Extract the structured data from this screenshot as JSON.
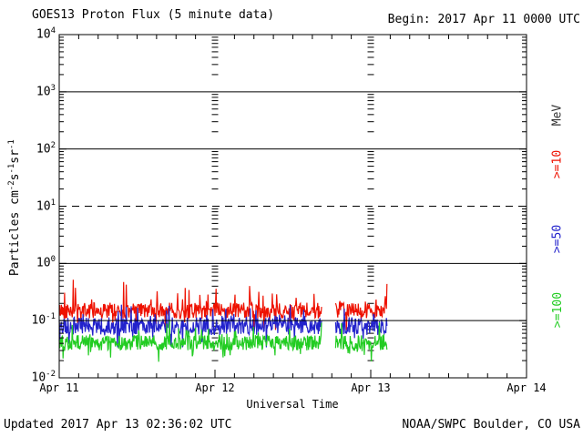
{
  "header": {
    "title": "GOES13 Proton Flux (5 minute data)",
    "begin": "Begin: 2017 Apr 11 0000 UTC"
  },
  "footer": {
    "updated": "Updated 2017 Apr 13 02:36:02 UTC",
    "credit": "NOAA/SWPC Boulder, CO USA"
  },
  "chart_data": {
    "type": "line",
    "scale": "log",
    "title": "GOES13 Proton Flux (5 minute data)",
    "xlabel": "Universal Time",
    "ylabel": "Particles cm-2 s-1 sr-1",
    "ylabel_parts": [
      "Particles cm",
      "-2",
      "s",
      "-1",
      "sr",
      "-1"
    ],
    "unit_label": "MeV",
    "y_tick_base": "10",
    "y_tick_exponents": [
      4,
      3,
      2,
      1,
      0,
      -1,
      -2
    ],
    "ylim": [
      0.01,
      10000
    ],
    "x_ticks": [
      "Apr 11",
      "Apr 12",
      "Apr 13",
      "Apr 14"
    ],
    "x_range_days": 3,
    "x_minor_ticks_per_day": 8,
    "solid_gridline_exponents": [
      3,
      2,
      0,
      -1
    ],
    "dashed_gridline_exponents": [
      1
    ],
    "event_threshold_flux": 10,
    "day_boundary_tick_days": [
      1,
      2
    ],
    "cadence_minutes": 5,
    "data_start_day": 0,
    "data_end_day": 2.105,
    "data_gap_days": [
      1.685,
      1.772
    ],
    "series": [
      {
        "label": ">=10",
        "energy_mev": 10,
        "color": "#ee1100",
        "baseline_flux": 0.15,
        "typical_min_flux": 0.09,
        "typical_max_flux": 0.43
      },
      {
        "label": ">=50",
        "energy_mev": 50,
        "color": "#2222cc",
        "baseline_flux": 0.08,
        "typical_min_flux": 0.045,
        "typical_max_flux": 0.16
      },
      {
        "label": ">=100",
        "energy_mev": 100,
        "color": "#22cc22",
        "baseline_flux": 0.041,
        "typical_min_flux": 0.025,
        "typical_max_flux": 0.095
      }
    ]
  }
}
